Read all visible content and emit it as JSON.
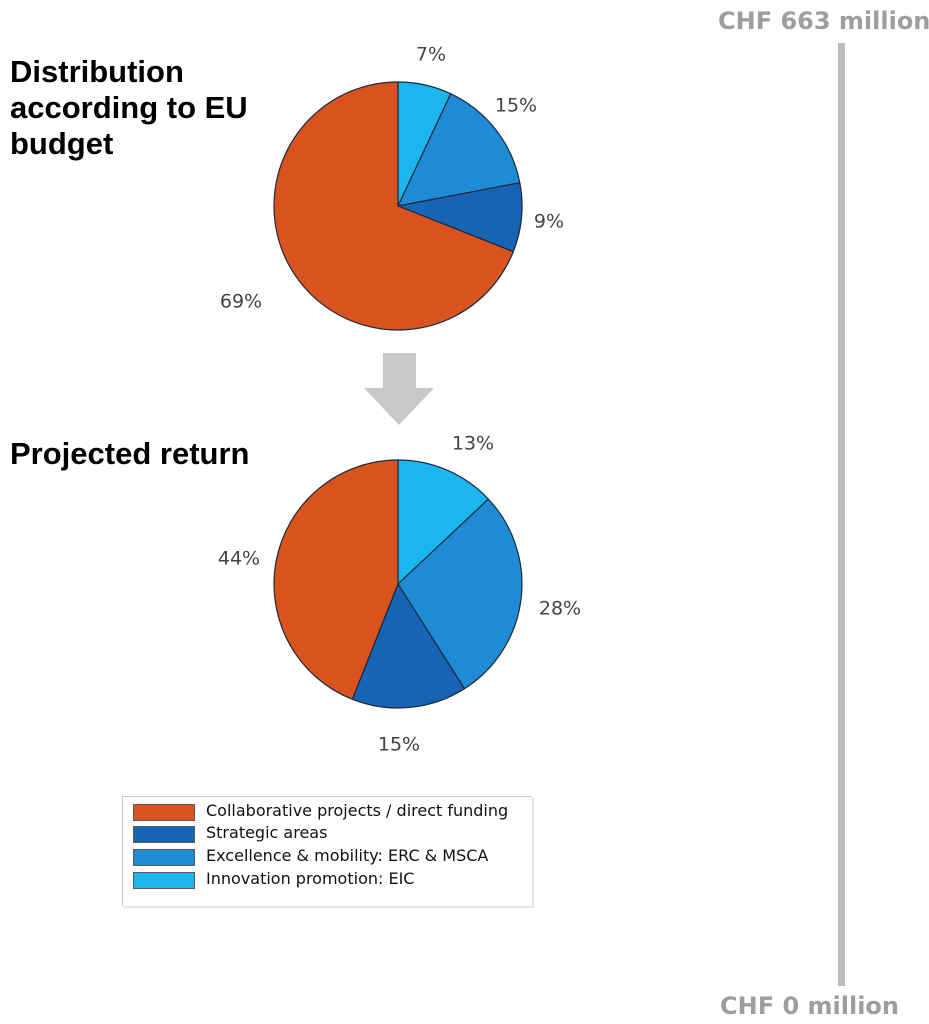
{
  "chart_data": [
    {
      "type": "pie",
      "title": "Distribution according to EU budget",
      "categories": [
        "Collaborative projects / direct funding",
        "Strategic areas",
        "Excellence & mobility: ERC & MSCA",
        "Innovation promotion: EIC"
      ],
      "values": [
        69,
        9,
        15,
        7
      ],
      "labels": [
        "69%",
        "9%",
        "15%",
        "7%"
      ],
      "colors": [
        "#d9531e",
        "#1763b4",
        "#1f8bd6",
        "#1bb5f0"
      ]
    },
    {
      "type": "pie",
      "title": "Projected return",
      "categories": [
        "Collaborative projects / direct funding",
        "Strategic areas",
        "Excellence & mobility: ERC & MSCA",
        "Innovation promotion: EIC"
      ],
      "values": [
        44,
        15,
        28,
        13
      ],
      "labels": [
        "44%",
        "15%",
        "28%",
        "13%"
      ],
      "colors": [
        "#d9531e",
        "#1763b4",
        "#1f8bd6",
        "#1bb5f0"
      ]
    }
  ],
  "legend": {
    "items": [
      {
        "label": "Collaborative projects / direct funding",
        "color": "#d9531e"
      },
      {
        "label": "Strategic areas",
        "color": "#1763b4"
      },
      {
        "label": "Excellence & mobility: ERC & MSCA",
        "color": "#1f8bd6"
      },
      {
        "label": "Innovation promotion: EIC",
        "color": "#1bb5f0"
      }
    ]
  },
  "scale": {
    "top_label": "CHF 663 million",
    "bottom_label": "CHF 0 million",
    "color": "#bcbcbc"
  },
  "arrow": {
    "color": "#c8c8c8",
    "icon": "down-arrow-icon"
  }
}
